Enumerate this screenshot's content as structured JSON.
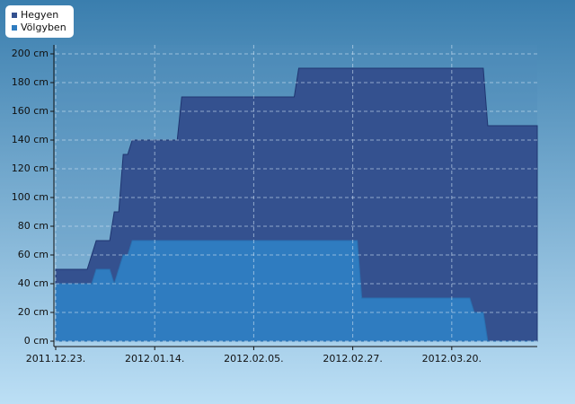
{
  "chart_data": {
    "type": "area",
    "series": [
      {
        "name": "Hegyen",
        "color": "#34518f",
        "x": [
          "2011-12-23",
          "2011-12-30",
          "2012-01-01",
          "2012-01-04",
          "2012-01-05",
          "2012-01-06",
          "2012-01-07",
          "2012-01-08",
          "2012-01-09",
          "2012-01-19",
          "2012-01-20",
          "2012-02-14",
          "2012-02-15",
          "2012-03-27",
          "2012-03-28",
          "2012-04-08"
        ],
        "values": [
          50,
          50,
          70,
          70,
          90,
          90,
          130,
          130,
          140,
          140,
          170,
          170,
          190,
          190,
          150,
          150
        ]
      },
      {
        "name": "Völgyben",
        "color": "#2f7cc0",
        "x": [
          "2011-12-23",
          "2011-12-31",
          "2012-01-01",
          "2012-01-04",
          "2012-01-05",
          "2012-01-07",
          "2012-01-08",
          "2012-01-09",
          "2012-02-28",
          "2012-02-29",
          "2012-03-24",
          "2012-03-25",
          "2012-03-27",
          "2012-03-28",
          "2012-04-08"
        ],
        "values": [
          40,
          40,
          50,
          50,
          40,
          60,
          60,
          70,
          70,
          30,
          30,
          20,
          20,
          0,
          0
        ]
      }
    ],
    "xlim": [
      "2011-12-23",
      "2012-04-08"
    ],
    "xticks": [
      {
        "value": "2011-12-23",
        "label": "2011.12.23."
      },
      {
        "value": "2012-01-14",
        "label": "2012.01.14."
      },
      {
        "value": "2012-02-05",
        "label": "2012.02.05."
      },
      {
        "value": "2012-02-27",
        "label": "2012.02.27."
      },
      {
        "value": "2012-03-20",
        "label": "2012.03.20."
      }
    ],
    "ylim": [
      0,
      200
    ],
    "yticks": [
      {
        "value": 0,
        "label": "0 cm"
      },
      {
        "value": 20,
        "label": "20 cm"
      },
      {
        "value": 40,
        "label": "40 cm"
      },
      {
        "value": 60,
        "label": "60 cm"
      },
      {
        "value": 80,
        "label": "80 cm"
      },
      {
        "value": 100,
        "label": "100 cm"
      },
      {
        "value": 120,
        "label": "120 cm"
      },
      {
        "value": 140,
        "label": "140 cm"
      },
      {
        "value": 160,
        "label": "160 cm"
      },
      {
        "value": 180,
        "label": "180 cm"
      },
      {
        "value": 200,
        "label": "200 cm"
      }
    ],
    "grid": true,
    "legend": "top-left"
  }
}
